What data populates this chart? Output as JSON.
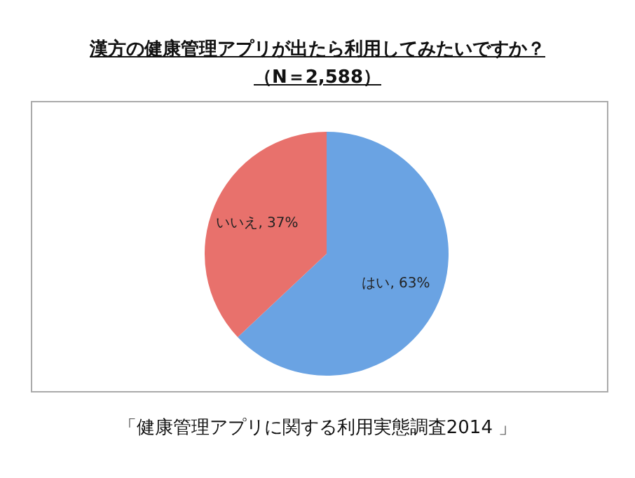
{
  "chart_data": {
    "type": "pie",
    "title": "漢方の健康管理アプリが出たら利用してみたいですか？",
    "subtitle": "（N＝2,588）",
    "categories": [
      "はい",
      "いいえ"
    ],
    "values": [
      63,
      37
    ],
    "value_labels": [
      "63%",
      "37%"
    ],
    "colors": [
      "#6aa3e3",
      "#e8716c"
    ],
    "legend": false,
    "annotations": [
      "「健康管理アプリに関する利用実態調査2014 」"
    ]
  }
}
